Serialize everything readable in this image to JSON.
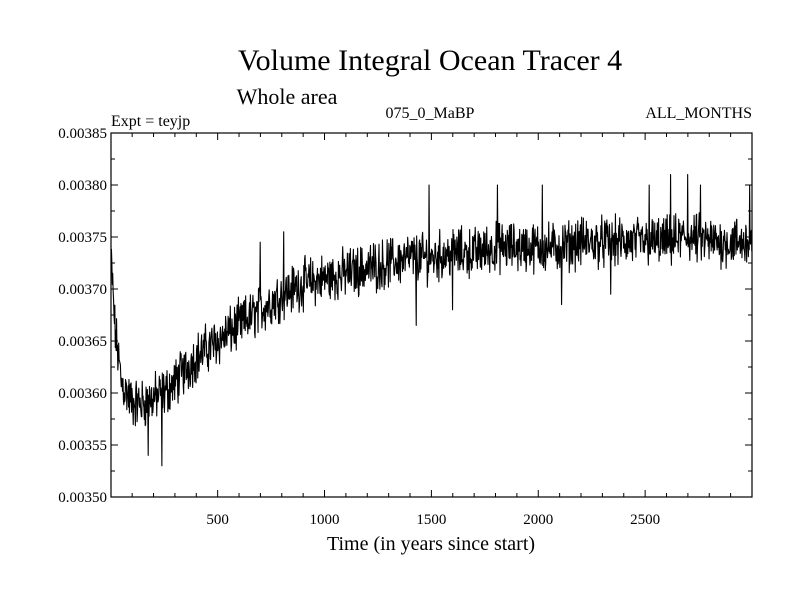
{
  "chart_data": {
    "type": "line",
    "title": "Volume Integral Ocean Tracer 4",
    "subtitle": "Whole area",
    "experiment_label": "Expt = teyjp",
    "period_label": "075_0_MaBP",
    "months_label": "ALL_MONTHS",
    "xlabel": "Time (in years since start)",
    "ylabel": "",
    "xlim": [
      1,
      3000
    ],
    "ylim": [
      0.0035,
      0.00385
    ],
    "x_ticks": [
      500,
      1000,
      1500,
      2000,
      2500
    ],
    "x_tick_labels": [
      "500",
      "1000",
      "1500",
      "2000",
      "2500"
    ],
    "y_ticks": [
      0.0035,
      0.00355,
      0.0036,
      0.00365,
      0.0037,
      0.00375,
      0.0038,
      0.00385
    ],
    "y_tick_labels": [
      "0.00350",
      "0.00355",
      "0.00360",
      "0.00365",
      "0.00370",
      "0.00375",
      "0.00380",
      "0.00385"
    ],
    "grid": false,
    "series": [
      {
        "name": "teyjp",
        "color": "#000000",
        "trend": {
          "x": [
            1,
            20,
            50,
            100,
            150,
            200,
            250,
            300,
            400,
            500,
            600,
            700,
            800,
            900,
            1000,
            1100,
            1200,
            1300,
            1400,
            1500,
            1600,
            1700,
            1800,
            1900,
            2000,
            2100,
            2200,
            2300,
            2400,
            2500,
            2600,
            2700,
            2800,
            2900,
            3000
          ],
          "y": [
            0.00373,
            0.00366,
            0.00361,
            0.00359,
            0.00359,
            0.003595,
            0.0036,
            0.00361,
            0.003635,
            0.00365,
            0.003665,
            0.00368,
            0.003695,
            0.003705,
            0.00371,
            0.003715,
            0.00372,
            0.003725,
            0.00373,
            0.00373,
            0.003735,
            0.003735,
            0.00374,
            0.00374,
            0.00374,
            0.00374,
            0.003745,
            0.003745,
            0.003745,
            0.003745,
            0.003745,
            0.00375,
            0.003745,
            0.003745,
            0.003745
          ]
        },
        "noise_amplitude": 3e-05,
        "spikes": [
          {
            "x": 240,
            "y": 0.00353
          },
          {
            "x": 175,
            "y": 0.00354
          },
          {
            "x": 700,
            "y": 0.003745
          },
          {
            "x": 810,
            "y": 0.003755
          },
          {
            "x": 1490,
            "y": 0.0038
          },
          {
            "x": 1810,
            "y": 0.0038
          },
          {
            "x": 2020,
            "y": 0.0038
          },
          {
            "x": 2520,
            "y": 0.0038
          },
          {
            "x": 2620,
            "y": 0.00381
          },
          {
            "x": 2700,
            "y": 0.00381
          },
          {
            "x": 2760,
            "y": 0.0038
          },
          {
            "x": 2990,
            "y": 0.0038
          },
          {
            "x": 1430,
            "y": 0.003665
          },
          {
            "x": 1600,
            "y": 0.00368
          },
          {
            "x": 2110,
            "y": 0.003685
          },
          {
            "x": 2340,
            "y": 0.003695
          }
        ]
      }
    ]
  }
}
